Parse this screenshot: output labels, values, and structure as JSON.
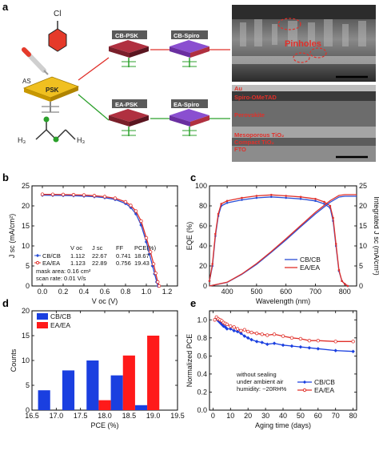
{
  "panels": {
    "a": {
      "label": "a",
      "solvent_cb": "Cl",
      "solvent_ea": "H₃",
      "solvent_ea_2": "H₃",
      "as_label": "AS",
      "psk_label": "PSK",
      "cb_psk": "CB-PSK",
      "cb_spiro": "CB-Spiro",
      "ea_psk": "EA-PSK",
      "ea_spiro": "EA-Spiro",
      "sem_top_label": "Pinholes",
      "sem_bottom_layers": [
        "Au",
        "Spiro-OMeTAD",
        "Perovskite",
        "Mesoporous TiO₂",
        "Compact TiO₂",
        "FTO"
      ]
    },
    "b": {
      "label": "b"
    },
    "c": {
      "label": "c"
    },
    "d": {
      "label": "d"
    },
    "e": {
      "label": "e"
    }
  },
  "chart_data": [
    {
      "panel": "b",
      "type": "line",
      "xlabel": "V oc (V)",
      "ylabel": "J sc (mA/cm²)",
      "xlim": [
        -0.1,
        1.3
      ],
      "ylim": [
        0,
        25
      ],
      "xticks": [
        0.0,
        0.2,
        0.4,
        0.6,
        0.8,
        1.0,
        1.2
      ],
      "yticks": [
        0,
        5,
        10,
        15,
        20,
        25
      ],
      "series": [
        {
          "name": "CB/CB",
          "color": "#2a4fd6",
          "x": [
            0.0,
            0.1,
            0.2,
            0.3,
            0.4,
            0.5,
            0.6,
            0.7,
            0.8,
            0.85,
            0.9,
            0.95,
            1.0,
            1.03,
            1.06,
            1.08,
            1.1,
            1.112
          ],
          "y": [
            22.67,
            22.65,
            22.6,
            22.55,
            22.45,
            22.3,
            22.05,
            21.6,
            20.6,
            19.6,
            18.0,
            15.2,
            11.0,
            8.0,
            5.0,
            3.0,
            1.0,
            0.0
          ]
        },
        {
          "name": "EA/EA",
          "color": "#e0302a",
          "x": [
            0.0,
            0.1,
            0.2,
            0.3,
            0.4,
            0.5,
            0.6,
            0.7,
            0.8,
            0.85,
            0.9,
            0.95,
            1.0,
            1.04,
            1.07,
            1.09,
            1.11,
            1.123
          ],
          "y": [
            22.89,
            22.87,
            22.83,
            22.78,
            22.7,
            22.55,
            22.3,
            21.9,
            21.0,
            20.1,
            18.7,
            16.2,
            12.0,
            8.5,
            5.5,
            3.2,
            1.0,
            0.0
          ]
        }
      ],
      "table": {
        "headers": [
          "",
          "V oc",
          "J sc",
          "FF",
          "PCE(%)"
        ],
        "rows": [
          [
            "CB/CB",
            "1.112",
            "22.67",
            "0.741",
            "18.67"
          ],
          [
            "EA/EA",
            "1.123",
            "22.89",
            "0.756",
            "19.43"
          ]
        ]
      },
      "notes": [
        "mask area: 0.16 cm²",
        "scan rate: 0.01 V/s"
      ]
    },
    {
      "panel": "c",
      "type": "line",
      "xlabel": "Wavelength (nm)",
      "ylabel": "EQE (%)",
      "ylabel_right": "Integrated J sc (mA/cm²)",
      "xlim": [
        340,
        840
      ],
      "ylim": [
        0,
        100
      ],
      "ylim_right": [
        0,
        25
      ],
      "xticks": [
        400,
        500,
        600,
        700,
        800
      ],
      "yticks": [
        0,
        20,
        40,
        60,
        80,
        100
      ],
      "yticks_right": [
        0,
        5,
        10,
        15,
        20,
        25
      ],
      "legend": "bottom-right",
      "series": [
        {
          "name": "CB/CB",
          "color": "#2a4fd6",
          "axis": "left",
          "x": [
            340,
            350,
            360,
            370,
            380,
            400,
            450,
            500,
            550,
            600,
            650,
            700,
            730,
            750,
            760,
            770,
            780,
            790,
            800,
            810
          ],
          "y": [
            5,
            20,
            50,
            70,
            80,
            83,
            86,
            88,
            89,
            88,
            87,
            85,
            82,
            78,
            65,
            40,
            15,
            5,
            2,
            0
          ]
        },
        {
          "name": "EA/EA",
          "color": "#e0302a",
          "axis": "left",
          "x": [
            340,
            350,
            360,
            370,
            380,
            400,
            450,
            500,
            550,
            600,
            650,
            700,
            730,
            750,
            760,
            770,
            780,
            790,
            800,
            810
          ],
          "y": [
            5,
            22,
            52,
            72,
            82,
            85,
            88,
            90,
            91,
            90,
            89,
            87,
            84,
            80,
            68,
            42,
            16,
            5,
            2,
            0
          ]
        },
        {
          "name": "CB/CB integrated",
          "color": "#2a4fd6",
          "axis": "right",
          "x": [
            340,
            400,
            450,
            500,
            550,
            600,
            650,
            700,
            750,
            780,
            800,
            840
          ],
          "y": [
            0,
            0.9,
            2.9,
            5.4,
            8.4,
            11.5,
            14.8,
            18.0,
            20.9,
            22.2,
            22.4,
            22.4
          ]
        },
        {
          "name": "EA/EA integrated",
          "color": "#e0302a",
          "axis": "right",
          "x": [
            340,
            400,
            450,
            500,
            550,
            600,
            650,
            700,
            750,
            780,
            800,
            840
          ],
          "y": [
            0,
            0.95,
            3.0,
            5.6,
            8.6,
            11.8,
            15.1,
            18.4,
            21.3,
            22.6,
            22.8,
            22.8
          ]
        }
      ]
    },
    {
      "panel": "d",
      "type": "bar",
      "xlabel": "PCE (%)",
      "ylabel": "Counts",
      "xlim": [
        16.5,
        19.5
      ],
      "ylim": [
        0,
        20
      ],
      "xticks": [
        16.5,
        17.0,
        17.5,
        18.0,
        18.5,
        19.0,
        19.5
      ],
      "yticks": [
        0,
        5,
        10,
        15,
        20
      ],
      "legend": "top-left",
      "bin_width": 0.25,
      "series": [
        {
          "name": "CB/CB",
          "color": "#1a3fe0",
          "x": [
            16.75,
            17.25,
            17.75,
            18.25,
            18.75
          ],
          "values": [
            4,
            8,
            10,
            7,
            1
          ]
        },
        {
          "name": "EA/EA",
          "color": "#ff1a1a",
          "x": [
            18.0,
            18.5,
            19.0
          ],
          "values": [
            2,
            11,
            15
          ]
        }
      ]
    },
    {
      "panel": "e",
      "type": "line",
      "xlabel": "Aging time (days)",
      "ylabel": "Normalized PCE",
      "xlim": [
        -2,
        82
      ],
      "ylim": [
        0,
        1.1
      ],
      "xticks": [
        0,
        10,
        20,
        30,
        40,
        50,
        60,
        70,
        80
      ],
      "yticks": [
        0.0,
        0.2,
        0.4,
        0.6,
        0.8,
        1.0
      ],
      "legend": "bottom-right",
      "annotation": [
        "without sealing",
        "under ambient air",
        "humidity: ~20RH%"
      ],
      "series": [
        {
          "name": "CB/CB",
          "color": "#1a3fe0",
          "x": [
            1,
            2,
            3,
            4,
            5,
            6,
            7,
            8,
            10,
            12,
            14,
            16,
            18,
            20,
            22,
            25,
            28,
            31,
            35,
            40,
            45,
            50,
            55,
            60,
            70,
            80
          ],
          "y": [
            1.0,
            1.02,
            0.99,
            0.97,
            0.95,
            0.93,
            0.92,
            0.9,
            0.9,
            0.88,
            0.87,
            0.85,
            0.82,
            0.8,
            0.78,
            0.76,
            0.75,
            0.73,
            0.74,
            0.72,
            0.71,
            0.7,
            0.69,
            0.68,
            0.66,
            0.65
          ]
        },
        {
          "name": "EA/EA",
          "color": "#e0302a",
          "x": [
            1,
            2,
            3,
            4,
            5,
            6,
            7,
            8,
            10,
            12,
            14,
            16,
            18,
            20,
            22,
            25,
            28,
            31,
            35,
            40,
            45,
            50,
            55,
            60,
            70,
            80
          ],
          "y": [
            1.0,
            1.03,
            1.01,
            1.0,
            0.99,
            0.97,
            0.96,
            0.95,
            0.93,
            0.92,
            0.9,
            0.88,
            0.89,
            0.87,
            0.86,
            0.85,
            0.84,
            0.83,
            0.84,
            0.82,
            0.8,
            0.79,
            0.77,
            0.77,
            0.76,
            0.76
          ]
        }
      ]
    }
  ]
}
